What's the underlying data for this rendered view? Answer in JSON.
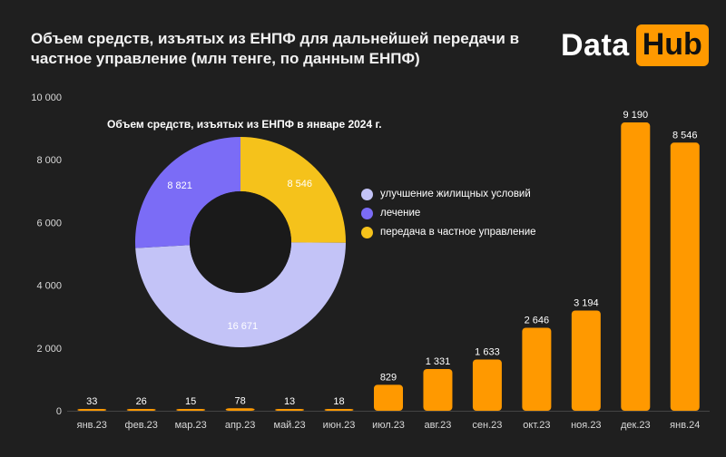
{
  "header": {
    "title_line1": "Объем средств, изъятых из ЕНПФ для дальнейшей передачи в",
    "title_line2": "частное управление  (млн тенге, по данным  ЕНПФ)",
    "logo_data": "Data",
    "logo_hub": "Hub"
  },
  "colors": {
    "bar": "#ff9900",
    "background": "#1f1f1f",
    "axis_text": "#d9d9d9",
    "pie": [
      "#c3c3f7",
      "#7b6cf6",
      "#f5c21b"
    ]
  },
  "chart_data": [
    {
      "type": "bar",
      "categories": [
        "янв.23",
        "фев.23",
        "мар.23",
        "апр.23",
        "май.23",
        "июн.23",
        "июл.23",
        "авг.23",
        "сен.23",
        "окт.23",
        "ноя.23",
        "дек.23",
        "янв.24"
      ],
      "values": [
        33,
        26,
        15,
        78,
        13,
        18,
        829,
        1331,
        1633,
        2646,
        3194,
        9190,
        8546
      ],
      "value_labels": [
        "33",
        "26",
        "15",
        "78",
        "13",
        "18",
        "829",
        "1 331",
        "1 633",
        "2 646",
        "3 194",
        "9 190",
        "8 546"
      ],
      "ylim": [
        0,
        10000
      ],
      "yticks": [
        0,
        2000,
        4000,
        6000,
        8000,
        10000
      ],
      "ytick_labels": [
        "0",
        "2 000",
        "4 000",
        "6 000",
        "8 000",
        "10 000"
      ],
      "grid": false
    },
    {
      "type": "pie",
      "donut": true,
      "title": "Объем средств, изъятых из ЕНПФ в январе 2024 г.",
      "labels": [
        "улучшение жилищных условий",
        "лечение",
        "передача в частное управление"
      ],
      "values": [
        16671,
        8821,
        8546
      ],
      "value_labels": [
        "16 671",
        "8 821",
        "8 546"
      ],
      "legend_position": "right"
    }
  ]
}
